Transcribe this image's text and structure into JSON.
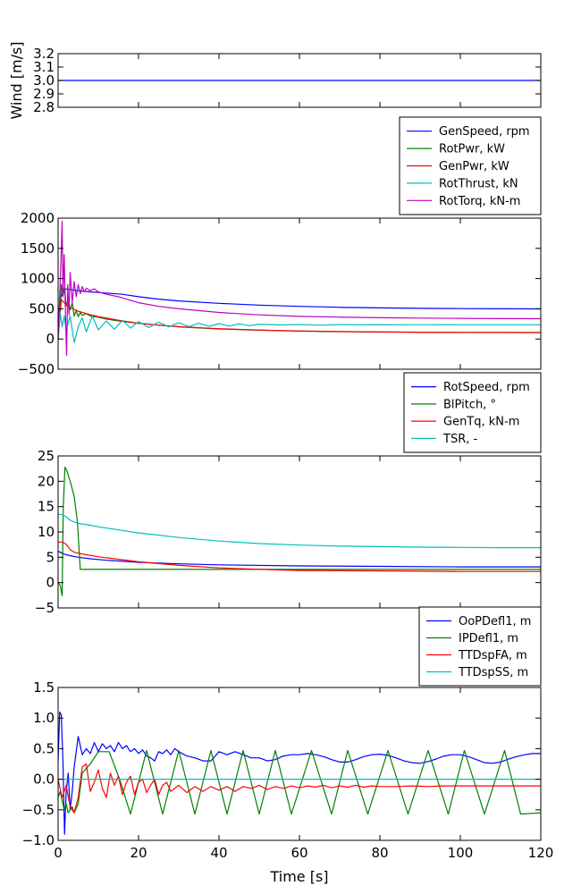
{
  "chart_data": [
    {
      "type": "line",
      "ylabel": "Wind [m/s]",
      "xlim": [
        0,
        120
      ],
      "ylim": [
        2.8,
        3.2
      ],
      "yticks": [
        "2.8",
        "2.9",
        "3.0",
        "3.1",
        "3.2"
      ],
      "legend": "none",
      "series": [
        {
          "color": "#0000ff",
          "x": [
            0,
            120
          ],
          "y": [
            3.0,
            3.0
          ]
        }
      ]
    },
    {
      "type": "line",
      "xlim": [
        0,
        120
      ],
      "ylim": [
        -500,
        2000
      ],
      "yticks": [
        "−500",
        "0",
        "500",
        "1000",
        "1500",
        "2000"
      ],
      "legend": "above",
      "series": [
        {
          "name": "GenSpeed, rpm",
          "color": "#0000ff",
          "x": [
            0,
            0.7,
            1.5,
            3,
            5,
            8,
            12,
            16,
            20,
            25,
            30,
            40,
            50,
            60,
            70,
            80,
            90,
            100,
            110,
            120
          ],
          "y": [
            0,
            700,
            830,
            820,
            800,
            780,
            760,
            740,
            700,
            660,
            630,
            590,
            560,
            540,
            525,
            515,
            508,
            503,
            500,
            498
          ]
        },
        {
          "name": "RotPwr, kW",
          "color": "#008000",
          "x": [
            0,
            0.8,
            1.2,
            1.6,
            2,
            2.5,
            3,
            3.5,
            4,
            4.5,
            5,
            5.5,
            6,
            7,
            8,
            10,
            12,
            15,
            20,
            25,
            30,
            40,
            50,
            60,
            70,
            80,
            90,
            100,
            110,
            120
          ],
          "y": [
            0,
            900,
            700,
            850,
            550,
            650,
            480,
            600,
            380,
            470,
            370,
            440,
            390,
            420,
            380,
            360,
            330,
            300,
            260,
            230,
            200,
            165,
            145,
            130,
            122,
            116,
            112,
            110,
            108,
            107
          ]
        },
        {
          "name": "GenPwr, kW",
          "color": "#ff0000",
          "x": [
            0,
            0.8,
            1.5,
            3,
            5,
            7,
            10,
            15,
            20,
            25,
            30,
            40,
            50,
            60,
            70,
            80,
            90,
            100,
            110,
            120
          ],
          "y": [
            0,
            650,
            600,
            520,
            460,
            420,
            370,
            310,
            260,
            230,
            205,
            170,
            148,
            133,
            123,
            117,
            113,
            110,
            108,
            107
          ]
        },
        {
          "name": "RotThrust, kN",
          "color": "#00bfbf",
          "x": [
            0,
            0.5,
            1,
            1.5,
            2,
            3,
            4,
            5,
            6,
            7,
            8.5,
            10,
            12,
            14,
            16,
            18,
            20,
            22.5,
            25,
            27.5,
            30,
            32.5,
            35,
            37.5,
            40,
            42.5,
            45,
            47.5,
            50,
            55,
            60,
            65,
            70,
            80,
            90,
            100,
            110,
            120
          ],
          "y": [
            0,
            450,
            200,
            380,
            150,
            380,
            -60,
            200,
            350,
            120,
            380,
            150,
            300,
            160,
            310,
            180,
            290,
            190,
            280,
            200,
            270,
            205,
            260,
            210,
            255,
            215,
            250,
            220,
            245,
            232,
            240,
            230,
            238,
            234,
            236,
            235,
            235,
            235
          ]
        },
        {
          "name": "RotTorq, kN-m",
          "color": "#bf00bf",
          "x": [
            0,
            0.7,
            1,
            1.2,
            1.5,
            1.8,
            2.1,
            2.4,
            2.7,
            3,
            3.5,
            4,
            4.5,
            5,
            5.5,
            6,
            6.5,
            7,
            8,
            9,
            10,
            12,
            15,
            20,
            25,
            30,
            40,
            50,
            60,
            70,
            80,
            90,
            100,
            110,
            120
          ],
          "y": [
            0,
            1300,
            1950,
            700,
            1400,
            500,
            -270,
            900,
            400,
            1100,
            600,
            950,
            700,
            900,
            750,
            870,
            780,
            840,
            800,
            830,
            780,
            740,
            700,
            600,
            540,
            500,
            440,
            400,
            375,
            362,
            352,
            346,
            341,
            338,
            336
          ]
        }
      ]
    },
    {
      "type": "line",
      "xlim": [
        0,
        120
      ],
      "ylim": [
        -5,
        25
      ],
      "yticks": [
        "−5",
        "0",
        "5",
        "10",
        "15",
        "20",
        "25"
      ],
      "legend": "above",
      "series": [
        {
          "name": "RotSpeed, rpm",
          "color": "#0000ff",
          "x": [
            0,
            0.5,
            1,
            2,
            3,
            5,
            8,
            12,
            20,
            30,
            40,
            60,
            80,
            100,
            120
          ],
          "y": [
            6.2,
            6.0,
            5.8,
            5.5,
            5.3,
            5.0,
            4.7,
            4.4,
            4.0,
            3.7,
            3.5,
            3.3,
            3.2,
            3.1,
            3.1
          ]
        },
        {
          "name": "BlPitch, °",
          "color": "#008000",
          "x": [
            0,
            0.5,
            1,
            1.3,
            1.7,
            2.2,
            3,
            4,
            4.8,
            5.5,
            6,
            10,
            20,
            40,
            60,
            80,
            100,
            120
          ],
          "y": [
            0,
            -0.5,
            -2.6,
            15,
            22.8,
            22,
            20,
            17,
            12,
            2.6,
            2.6,
            2.6,
            2.6,
            2.6,
            2.6,
            2.6,
            2.6,
            2.6
          ]
        },
        {
          "name": "GenTq, kN-m",
          "color": "#ff0000",
          "x": [
            0,
            1,
            2,
            3,
            4,
            5,
            7,
            10,
            15,
            20,
            30,
            40,
            50,
            60,
            80,
            100,
            120
          ],
          "y": [
            8.0,
            8.0,
            7.6,
            6.5,
            6.0,
            5.8,
            5.5,
            5.1,
            4.6,
            4.1,
            3.4,
            2.9,
            2.6,
            2.4,
            2.3,
            2.2,
            2.2
          ]
        },
        {
          "name": "TSR, -",
          "color": "#00bfbf",
          "x": [
            0,
            1,
            2,
            3,
            5,
            8,
            10,
            15,
            20,
            30,
            40,
            50,
            60,
            70,
            80,
            90,
            100,
            110,
            120
          ],
          "y": [
            13.5,
            13.4,
            13.0,
            12.3,
            11.7,
            11.3,
            11.0,
            10.4,
            9.8,
            8.9,
            8.2,
            7.7,
            7.4,
            7.2,
            7.1,
            7.0,
            6.95,
            6.9,
            6.9
          ]
        }
      ]
    },
    {
      "type": "line",
      "xlabel": "Time [s]",
      "xlim": [
        0,
        120
      ],
      "xticks": [
        "0",
        "20",
        "40",
        "60",
        "80",
        "100",
        "120"
      ],
      "ylim": [
        -1.0,
        1.5
      ],
      "yticks": [
        "−1.0",
        "−0.5",
        "0.0",
        "0.5",
        "1.0",
        "1.5"
      ],
      "legend": "above",
      "series": [
        {
          "name": "OoPDefl1, m",
          "color": "#0000ff",
          "x": [
            0,
            0.4,
            0.8,
            1.2,
            1.6,
            2.0,
            2.5,
            3.0,
            3.5,
            4.0,
            4.5,
            5.0,
            5.5,
            6.0,
            7,
            8,
            9,
            10,
            11,
            12,
            13,
            14,
            15,
            16,
            17,
            18,
            19,
            20,
            21,
            22,
            23,
            24,
            25,
            26,
            27,
            28,
            29,
            30,
            32,
            34,
            36,
            38,
            40,
            42,
            44,
            46,
            48,
            50,
            52,
            54,
            56,
            58,
            60,
            62,
            64,
            66,
            68,
            70,
            72,
            74,
            76,
            78,
            80,
            82,
            84,
            86,
            88,
            90,
            92,
            94,
            96,
            98,
            100,
            102,
            104,
            106,
            108,
            110,
            112,
            114,
            116,
            118,
            120
          ],
          "y": [
            0.3,
            1.1,
            1.05,
            0.3,
            -0.9,
            -0.2,
            0.1,
            -0.5,
            -0.2,
            0.2,
            0.45,
            0.7,
            0.55,
            0.4,
            0.5,
            0.42,
            0.6,
            0.45,
            0.58,
            0.5,
            0.55,
            0.45,
            0.6,
            0.5,
            0.55,
            0.45,
            0.5,
            0.42,
            0.48,
            0.38,
            0.35,
            0.3,
            0.45,
            0.42,
            0.48,
            0.4,
            0.5,
            0.45,
            0.38,
            0.35,
            0.3,
            0.3,
            0.45,
            0.4,
            0.45,
            0.4,
            0.35,
            0.35,
            0.3,
            0.32,
            0.38,
            0.4,
            0.4,
            0.42,
            0.4,
            0.37,
            0.32,
            0.28,
            0.28,
            0.32,
            0.37,
            0.4,
            0.41,
            0.39,
            0.35,
            0.3,
            0.27,
            0.26,
            0.29,
            0.33,
            0.38,
            0.4,
            0.4,
            0.37,
            0.32,
            0.27,
            0.26,
            0.28,
            0.33,
            0.37,
            0.4,
            0.42,
            0.42
          ]
        },
        {
          "name": "IPDefl1, m",
          "color": "#008000",
          "x": [
            0,
            0.5,
            1,
            1.5,
            2,
            2.5,
            3,
            3.5,
            4,
            5,
            6,
            8,
            10,
            12.7,
            15.3,
            18,
            22,
            26,
            30,
            34,
            38,
            42,
            46,
            50,
            54,
            58,
            63,
            68,
            72,
            77,
            82,
            87,
            92,
            97,
            101,
            106,
            111,
            115,
            120
          ],
          "y": [
            -0.3,
            -0.2,
            -0.35,
            -0.5,
            -0.4,
            -0.55,
            -0.5,
            -0.45,
            -0.55,
            -0.4,
            0.1,
            0.25,
            0.45,
            0.45,
            0.0,
            -0.57,
            0.47,
            -0.57,
            0.47,
            -0.57,
            0.47,
            -0.57,
            0.47,
            -0.57,
            0.47,
            -0.57,
            0.47,
            -0.57,
            0.47,
            -0.57,
            0.47,
            -0.57,
            0.47,
            -0.57,
            0.47,
            -0.57,
            0.47,
            -0.57,
            -0.55
          ]
        },
        {
          "name": "TTDspFA, m",
          "color": "#ff0000",
          "x": [
            0,
            1,
            2,
            3,
            4,
            5,
            6,
            7,
            8,
            9,
            10,
            11,
            12,
            13,
            14,
            15,
            16,
            17,
            18,
            19,
            20,
            21,
            22,
            23,
            24,
            25,
            26,
            27,
            28,
            29,
            30,
            32,
            34,
            36,
            38,
            40,
            42,
            44,
            46,
            48,
            50,
            52,
            54,
            56,
            58,
            60,
            62,
            64,
            66,
            68,
            70,
            72,
            74,
            76,
            78,
            80,
            84,
            88,
            92,
            96,
            100,
            104,
            108,
            112,
            116,
            120
          ],
          "y": [
            0,
            -0.3,
            -0.1,
            -0.45,
            -0.55,
            -0.3,
            0.2,
            0.25,
            -0.2,
            -0.05,
            0.15,
            -0.15,
            -0.3,
            0.1,
            -0.1,
            0.05,
            -0.25,
            -0.05,
            0.05,
            -0.25,
            -0.05,
            0.0,
            -0.22,
            -0.1,
            0.0,
            -0.25,
            -0.1,
            -0.05,
            -0.2,
            -0.15,
            -0.1,
            -0.22,
            -0.12,
            -0.2,
            -0.12,
            -0.18,
            -0.12,
            -0.2,
            -0.12,
            -0.15,
            -0.1,
            -0.17,
            -0.12,
            -0.15,
            -0.11,
            -0.14,
            -0.11,
            -0.13,
            -0.1,
            -0.14,
            -0.11,
            -0.13,
            -0.1,
            -0.13,
            -0.11,
            -0.12,
            -0.12,
            -0.11,
            -0.12,
            -0.11,
            -0.11,
            -0.11,
            -0.11,
            -0.11,
            -0.11,
            -0.11
          ]
        },
        {
          "name": "TTDspSS, m",
          "color": "#00bfbf",
          "x": [
            0,
            5,
            10,
            20,
            40,
            60,
            80,
            100,
            120
          ],
          "y": [
            0,
            0,
            0,
            0,
            0,
            0,
            0,
            0,
            0
          ]
        }
      ]
    }
  ]
}
